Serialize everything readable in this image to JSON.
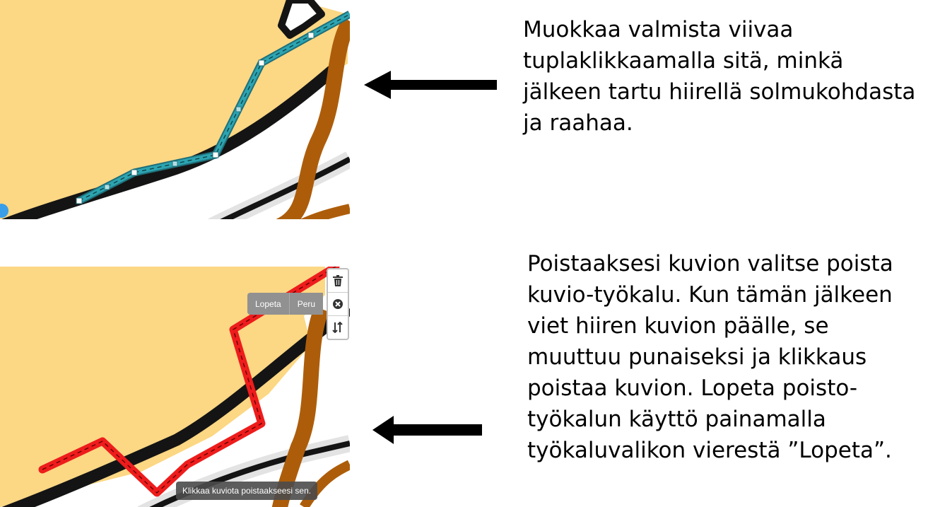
{
  "instructions": {
    "edit": [
      "Muokkaa valmista viivaa",
      "tuplaklikkaamalla sitä, minkä",
      "jälkeen tartu hiirellä solmukohdasta",
      "ja raahaa."
    ],
    "delete": [
      "Poistaaksesi kuvion valitse poista",
      "kuvio-työkalu. Kun tämän jälkeen",
      "viet hiiren kuvion päälle, se",
      "muuttuu punaiseksi ja klikkaus",
      "poistaa kuvion. Lopeta poisto-",
      "työkalun käyttö painamalla",
      "työkaluvalikon vierestä ”Lopeta”."
    ]
  },
  "action_bar": {
    "finish_label": "Lopeta",
    "cancel_label": "Peru"
  },
  "toolbar": {
    "tools": [
      "trash-icon",
      "close-circle-icon",
      "sort-arrows-icon"
    ]
  },
  "tooltip": {
    "text": "Klikkaa kuviota poistaakseesi sen."
  },
  "colors": {
    "land": "#fcd784",
    "road_black": "#141414",
    "road_brown": "#ad5d0a",
    "edit_line": "#2596a3",
    "delete_line": "#ee1c1c"
  }
}
